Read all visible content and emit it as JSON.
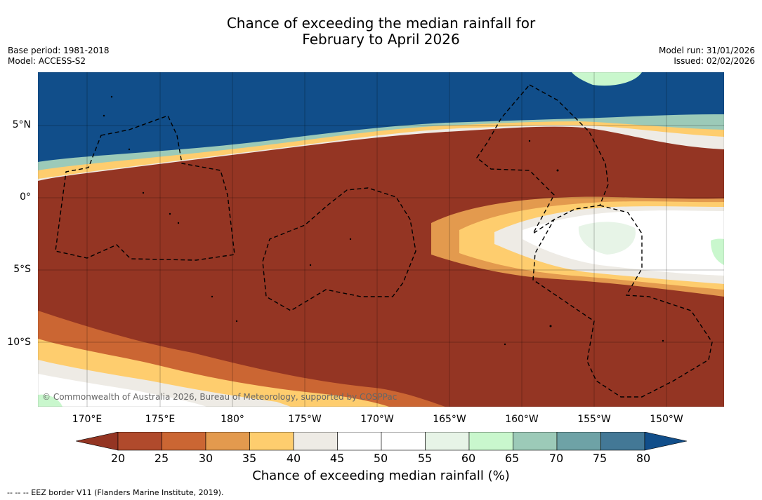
{
  "header": {
    "title_line1": "Chance of exceeding the median rainfall for",
    "title_line2": "February to April 2026",
    "base_period": "Base period: 1981-2018",
    "model": "Model: ACCESS-S2",
    "model_run": "Model run: 31/01/2026",
    "issued": "Issued: 02/02/2026"
  },
  "map": {
    "lat_labels": [
      "5°N",
      "0°",
      "5°S",
      "10°S"
    ],
    "lon_labels": [
      "170°E",
      "175°E",
      "180°",
      "175°W",
      "170°W",
      "165°W",
      "160°W",
      "155°W",
      "150°W"
    ],
    "copyright": "© Commonwealth of Australia 2026, Bureau of Meteorology, supported by COSPPac"
  },
  "colorbar": {
    "ticks": [
      "20",
      "25",
      "30",
      "35",
      "40",
      "45",
      "50",
      "55",
      "60",
      "65",
      "70",
      "75",
      "80"
    ],
    "label": "Chance of exceeding median rainfall (%)",
    "colors": [
      "#943523",
      "#b04a2c",
      "#cb6633",
      "#e39a4e",
      "#fecd6e",
      "#eeebe5",
      "#ffffff",
      "#ffffff",
      "#e7f4e7",
      "#c9f7cd",
      "#9ccab8",
      "#6ea2a6",
      "#437896",
      "#114e8a"
    ]
  },
  "footer": {
    "eez_note": "--  --  -- EEZ border V11 (Flanders Marine Institute, 2019)."
  }
}
